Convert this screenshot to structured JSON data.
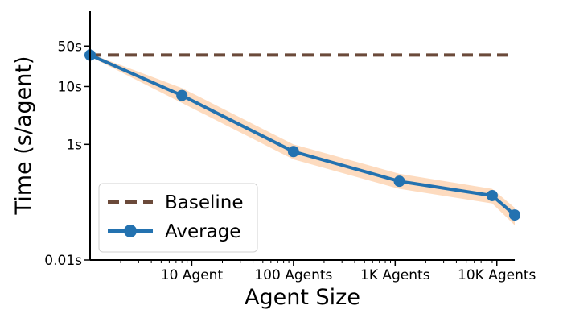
{
  "chart_data": {
    "type": "line",
    "xlabel": "Agent Size",
    "ylabel": "Time (s/agent)",
    "x_scale": "log",
    "y_scale": "log",
    "xlim": [
      1,
      15000
    ],
    "ylim": [
      0.01,
      200
    ],
    "x_ticks": [
      {
        "value": 10,
        "label": "10 Agent"
      },
      {
        "value": 100,
        "label": "100 Agents"
      },
      {
        "value": 1000,
        "label": "1K Agents"
      },
      {
        "value": 10000,
        "label": "10K Agents"
      }
    ],
    "y_ticks": [
      {
        "value": 0.01,
        "label": "0.01s"
      },
      {
        "value": 1,
        "label": "1s"
      },
      {
        "value": 10,
        "label": "10s"
      },
      {
        "value": 50,
        "label": "50s"
      }
    ],
    "grid": false,
    "legend": {
      "placement": "lower-left",
      "entries": [
        {
          "label": "Baseline",
          "style": "dashed",
          "color": "#6b4a3a"
        },
        {
          "label": "Average",
          "style": "line-marker",
          "color": "#2372b0"
        }
      ]
    },
    "series": [
      {
        "name": "Baseline",
        "color": "#6b4a3a",
        "style": "dashed",
        "x": [
          1,
          15000
        ],
        "y": [
          35,
          35
        ]
      },
      {
        "name": "Average",
        "color": "#2372b0",
        "band_color": "#fdd5b4",
        "style": "line-marker",
        "x": [
          1,
          8,
          100,
          1100,
          9000,
          15000
        ],
        "y": [
          35,
          7,
          0.75,
          0.23,
          0.13,
          0.06
        ],
        "band_lower": [
          33,
          5.2,
          0.55,
          0.17,
          0.095,
          0.04
        ],
        "band_upper": [
          37,
          9.4,
          1.0,
          0.31,
          0.17,
          0.08
        ]
      }
    ]
  }
}
